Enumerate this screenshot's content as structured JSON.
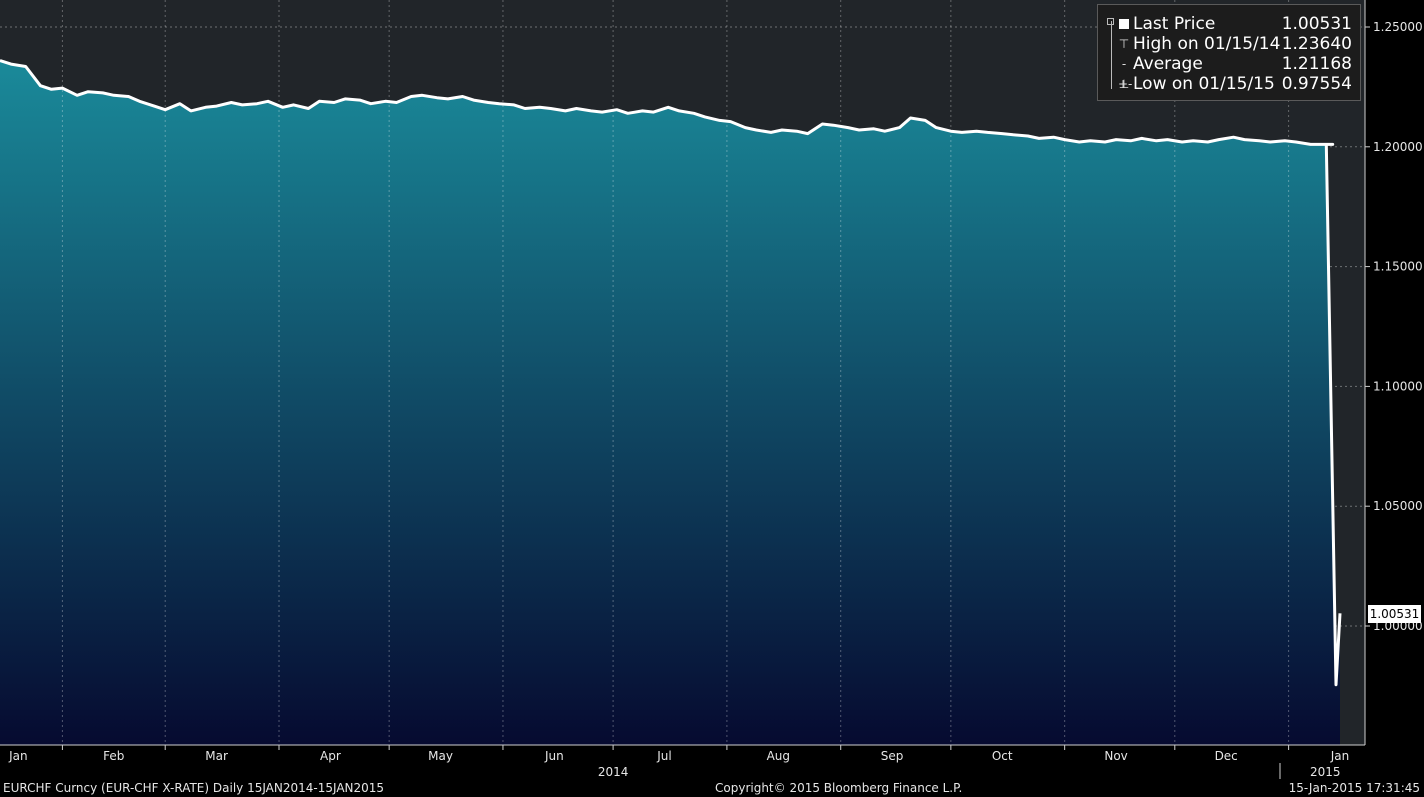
{
  "chart_data": {
    "type": "area",
    "x_start": "2014-01-15",
    "x_end": "2015-01-15",
    "y_ticks": [
      "1.25000",
      "1.20000",
      "1.15000",
      "1.10000",
      "1.05000",
      "1.00000"
    ],
    "y_tick_values": [
      1.25,
      1.2,
      1.15,
      1.1,
      1.05,
      1.0
    ],
    "ylim": [
      0.9495,
      1.25
    ],
    "month_labels": [
      "Jan",
      "Feb",
      "Mar",
      "Apr",
      "May",
      "Jun",
      "Jul",
      "Aug",
      "Sep",
      "Oct",
      "Nov",
      "Dec",
      "Jan"
    ],
    "month_label_dates": [
      "2014-01-20",
      "2014-02-15",
      "2014-03-15",
      "2014-04-15",
      "2014-05-15",
      "2014-06-15",
      "2014-07-15",
      "2014-08-15",
      "2014-09-15",
      "2014-10-15",
      "2014-11-15",
      "2014-12-15",
      "2015-01-15"
    ],
    "year_labels": [
      "2014",
      "2015"
    ],
    "year_label_dates": [
      "2014-07-01",
      "2015-01-11"
    ],
    "grid": true,
    "legend_position": "top-right",
    "series": [
      {
        "name": "Last Price",
        "x": [
          "2014-01-15",
          "2014-01-18",
          "2014-01-22",
          "2014-01-26",
          "2014-01-29",
          "2014-02-01",
          "2014-02-05",
          "2014-02-08",
          "2014-02-12",
          "2014-02-15",
          "2014-02-19",
          "2014-02-22",
          "2014-02-26",
          "2014-03-01",
          "2014-03-05",
          "2014-03-08",
          "2014-03-12",
          "2014-03-15",
          "2014-03-19",
          "2014-03-22",
          "2014-03-26",
          "2014-03-29",
          "2014-04-02",
          "2014-04-05",
          "2014-04-09",
          "2014-04-12",
          "2014-04-16",
          "2014-04-19",
          "2014-04-23",
          "2014-04-26",
          "2014-04-30",
          "2014-05-03",
          "2014-05-07",
          "2014-05-10",
          "2014-05-14",
          "2014-05-17",
          "2014-05-21",
          "2014-05-24",
          "2014-05-28",
          "2014-05-31",
          "2014-06-04",
          "2014-06-07",
          "2014-06-11",
          "2014-06-14",
          "2014-06-18",
          "2014-06-21",
          "2014-06-25",
          "2014-06-28",
          "2014-07-02",
          "2014-07-05",
          "2014-07-09",
          "2014-07-12",
          "2014-07-16",
          "2014-07-19",
          "2014-07-23",
          "2014-07-26",
          "2014-07-30",
          "2014-08-02",
          "2014-08-06",
          "2014-08-09",
          "2014-08-13",
          "2014-08-16",
          "2014-08-20",
          "2014-08-23",
          "2014-08-27",
          "2014-08-30",
          "2014-09-03",
          "2014-09-06",
          "2014-09-10",
          "2014-09-13",
          "2014-09-17",
          "2014-09-20",
          "2014-09-24",
          "2014-09-27",
          "2014-10-01",
          "2014-10-04",
          "2014-10-08",
          "2014-10-11",
          "2014-10-15",
          "2014-10-18",
          "2014-10-22",
          "2014-10-25",
          "2014-10-29",
          "2014-11-01",
          "2014-11-05",
          "2014-11-08",
          "2014-11-12",
          "2014-11-15",
          "2014-11-19",
          "2014-11-22",
          "2014-11-26",
          "2014-11-29",
          "2014-12-03",
          "2014-12-06",
          "2014-12-10",
          "2014-12-13",
          "2014-12-17",
          "2014-12-20",
          "2014-12-24",
          "2014-12-27",
          "2014-12-31",
          "2015-01-03",
          "2015-01-07",
          "2015-01-10",
          "2015-01-13",
          "2015-01-14",
          "2015-01-15",
          "2015-01-15"
        ],
        "y": [
          1.236,
          1.2345,
          1.2335,
          1.2255,
          1.224,
          1.2245,
          1.2215,
          1.223,
          1.2225,
          1.2215,
          1.221,
          1.219,
          1.217,
          1.2155,
          1.218,
          1.215,
          1.2165,
          1.217,
          1.2185,
          1.2175,
          1.218,
          1.219,
          1.2165,
          1.2175,
          1.216,
          1.219,
          1.2185,
          1.22,
          1.2195,
          1.218,
          1.219,
          1.2185,
          1.221,
          1.2215,
          1.2205,
          1.22,
          1.221,
          1.2195,
          1.2185,
          1.218,
          1.2175,
          1.216,
          1.2165,
          1.216,
          1.215,
          1.216,
          1.215,
          1.2145,
          1.2155,
          1.214,
          1.215,
          1.2145,
          1.2165,
          1.215,
          1.214,
          1.2125,
          1.211,
          1.2105,
          1.208,
          1.207,
          1.206,
          1.207,
          1.2065,
          1.2055,
          1.2095,
          1.209,
          1.208,
          1.207,
          1.2075,
          1.2065,
          1.208,
          1.212,
          1.211,
          1.208,
          1.2065,
          1.206,
          1.2065,
          1.206,
          1.2055,
          1.205,
          1.2045,
          1.2035,
          1.204,
          1.203,
          1.202,
          1.2025,
          1.202,
          1.203,
          1.2025,
          1.2035,
          1.2025,
          1.203,
          1.202,
          1.2025,
          1.202,
          1.203,
          1.204,
          1.203,
          1.2025,
          1.202,
          1.2025,
          1.202,
          1.201,
          1.201,
          1.201,
          1.201,
          0.9755,
          1.0053
        ]
      }
    ],
    "legend": [
      {
        "label": "Last Price",
        "value": "1.00531"
      },
      {
        "label": "High on 01/15/14",
        "value": "1.23640"
      },
      {
        "label": "Average",
        "value": "1.21168"
      },
      {
        "label": "Low on 01/15/15",
        "value": "0.97554"
      }
    ],
    "last_price_tag": "1.00531"
  },
  "footer": {
    "left": "EURCHF Curncy (EUR-CHF X-RATE)  Daily 15JAN2014-15JAN2015",
    "center": "Copyright© 2015 Bloomberg Finance L.P.",
    "right": "15-Jan-2015 17:31:45"
  },
  "colors": {
    "area_top": "#1a8a9a",
    "area_bottom": "#060a30",
    "background": "#212529",
    "line": "#ffffff"
  }
}
